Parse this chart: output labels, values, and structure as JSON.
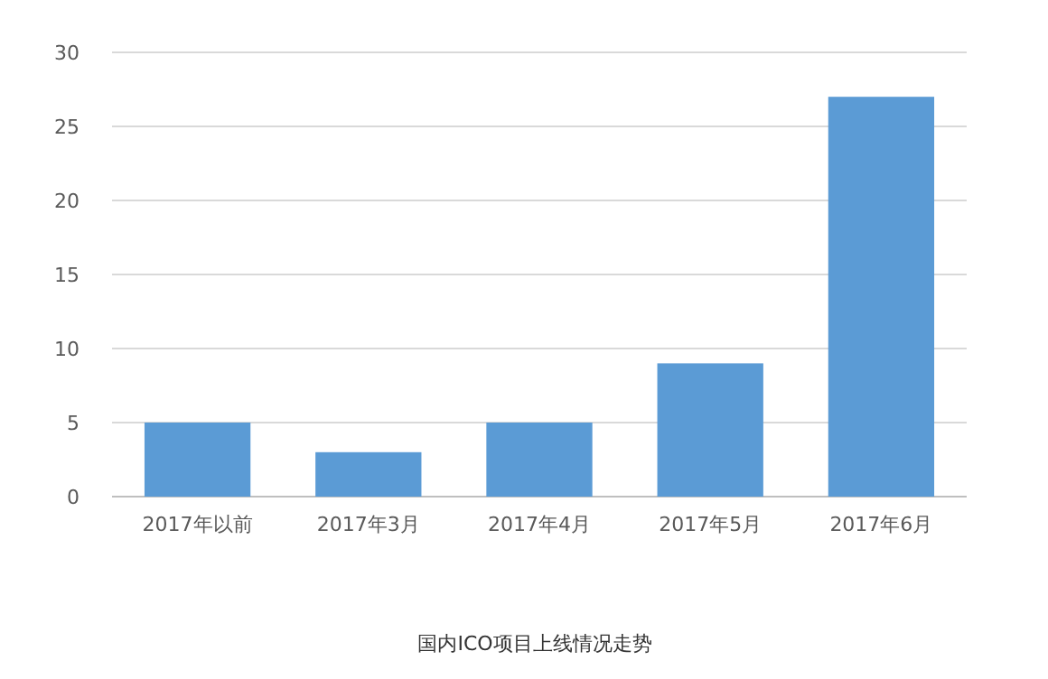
{
  "chart_data": {
    "type": "bar",
    "title": "国内ICO项目上线情况走势",
    "categories": [
      "2017年以前",
      "2017年3月",
      "2017年4月",
      "2017年5月",
      "2017年6月"
    ],
    "values": [
      5,
      3,
      5,
      9,
      27
    ],
    "color": "#5b9bd5",
    "ylim": [
      0,
      30
    ],
    "yticks": [
      0,
      5,
      10,
      15,
      20,
      25,
      30
    ],
    "grid": "y"
  }
}
